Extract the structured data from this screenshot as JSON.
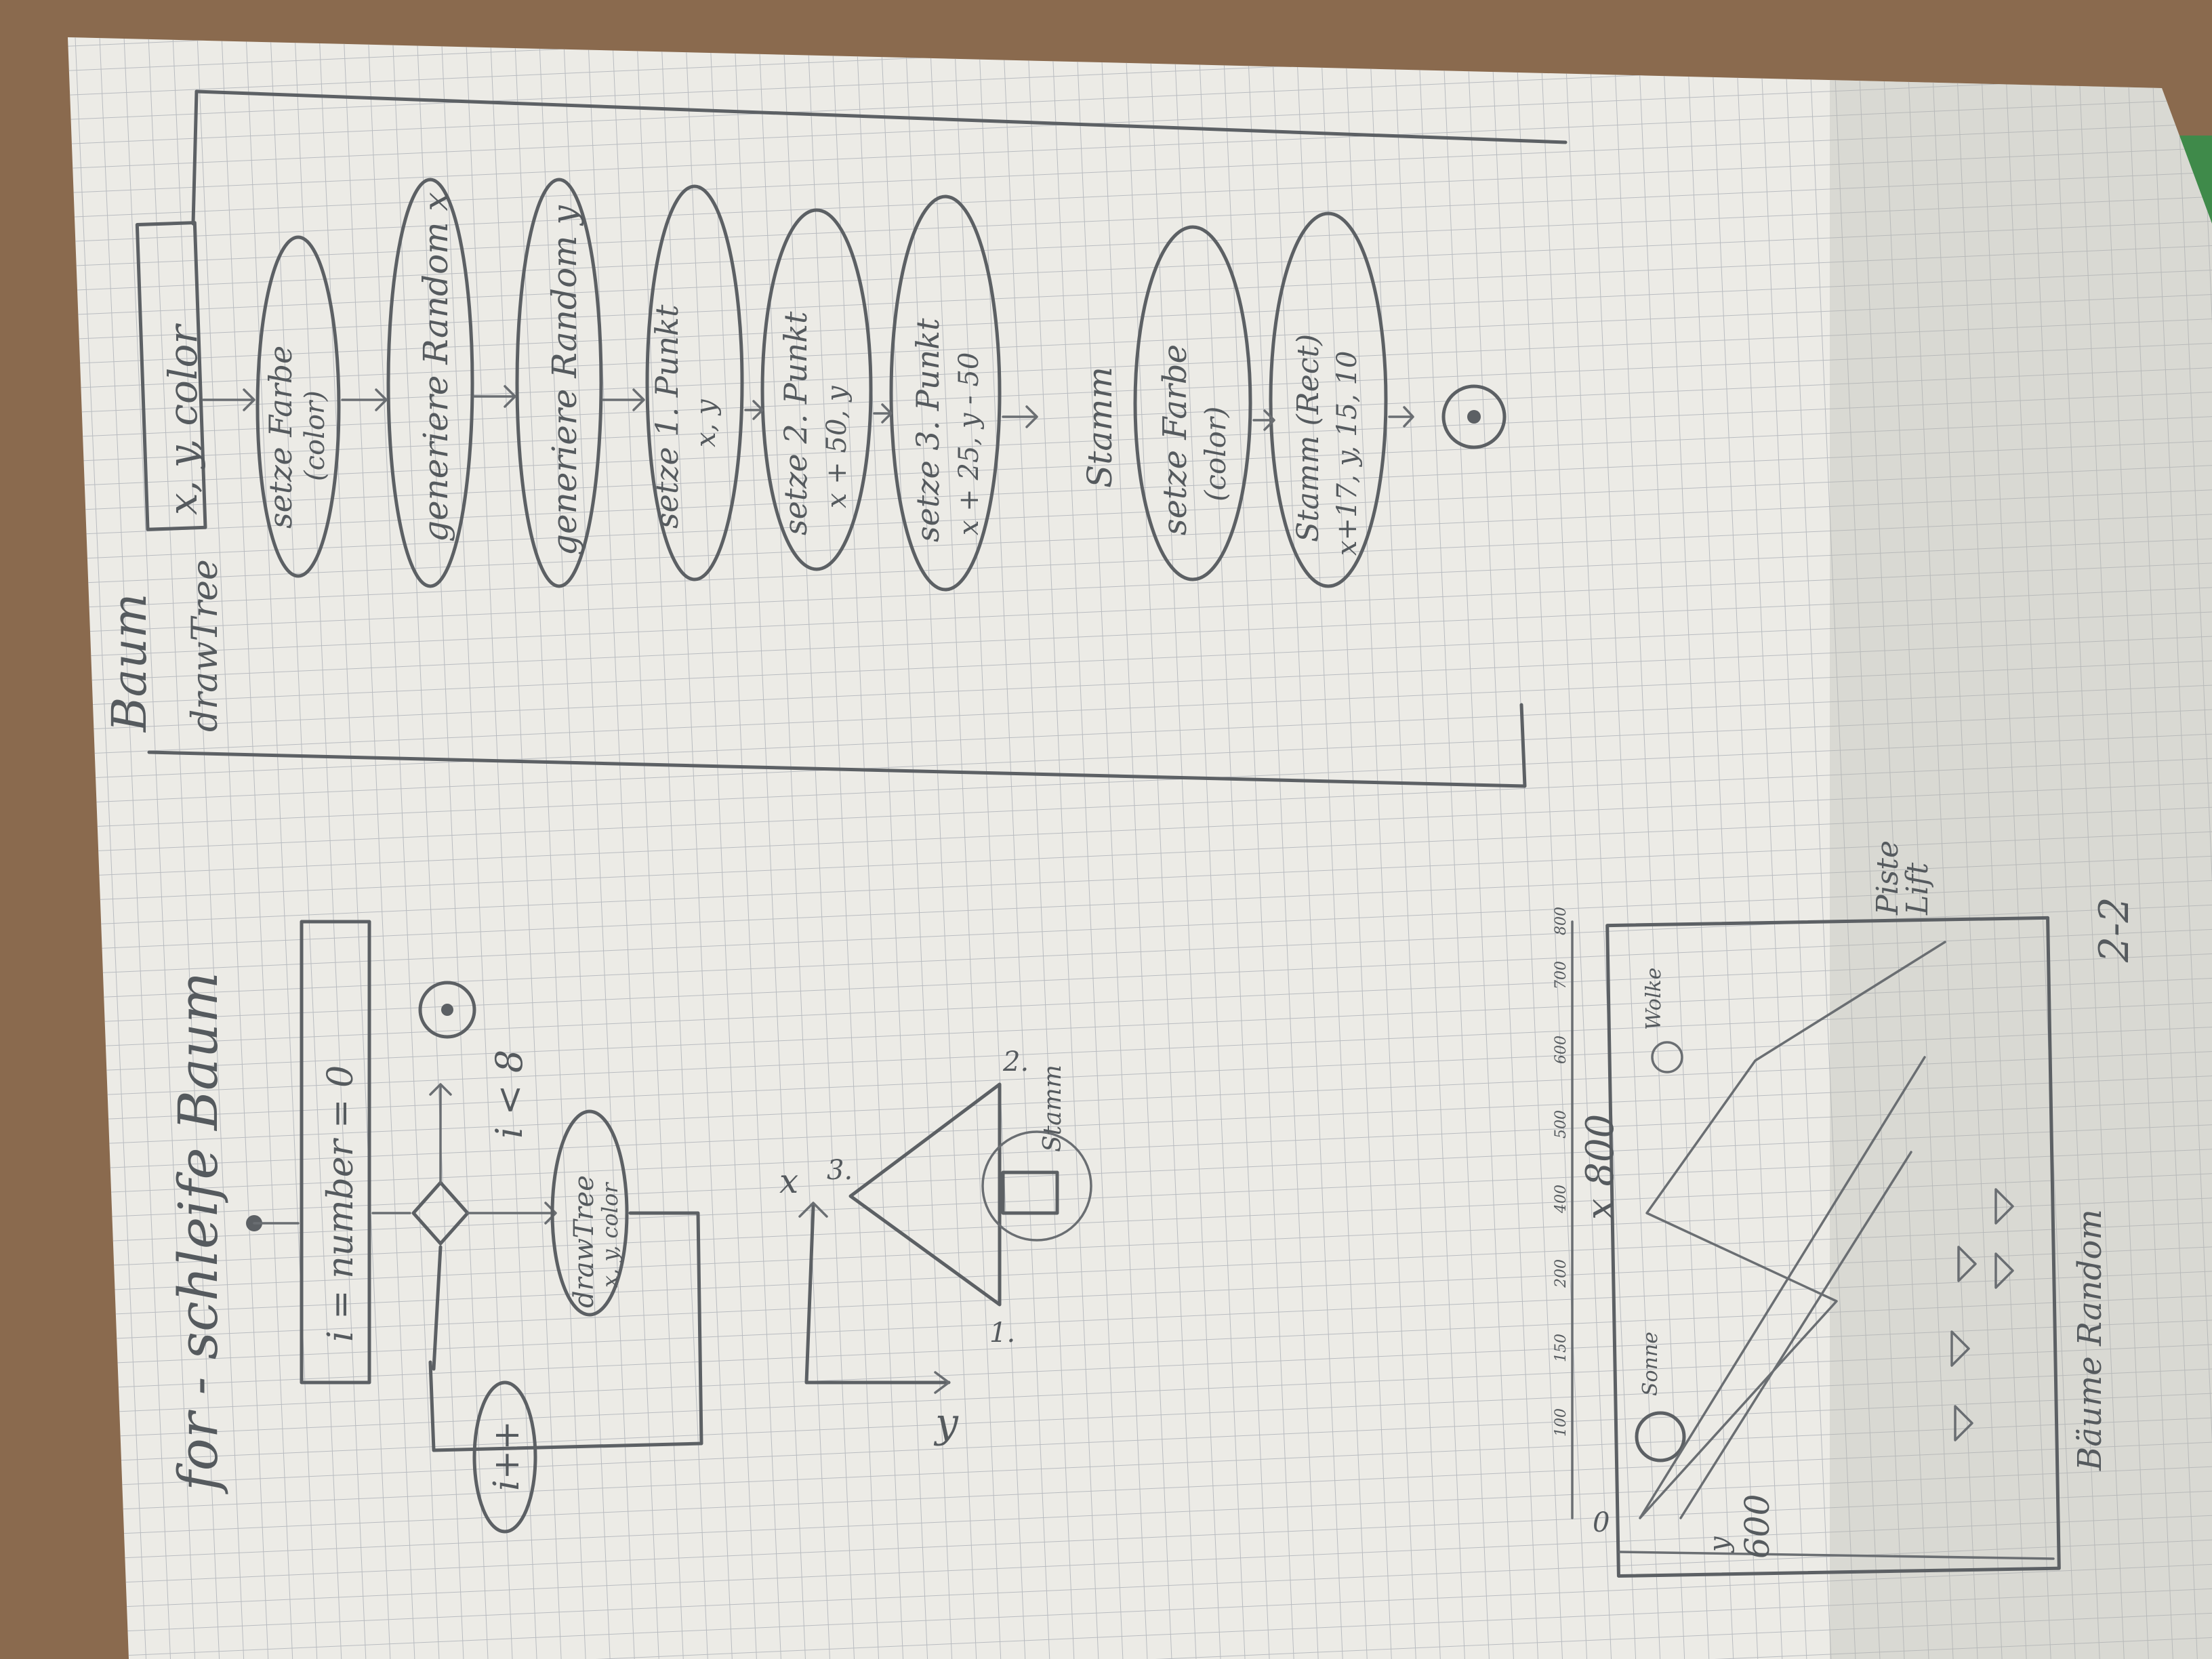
{
  "colors": {
    "table": "#8a6a4e",
    "paper": "#ecebe6",
    "grid": "#b9bcc0",
    "pencil": "#5c6064"
  },
  "top_flowchart": {
    "title": "Baum",
    "function_name": "drawTree",
    "params": "x, y, color",
    "steps": [
      {
        "line1": "setze Farbe",
        "line2": "(color)"
      },
      {
        "line1": "generiere Random x",
        "line2": ""
      },
      {
        "line1": "generiere Random y",
        "line2": ""
      },
      {
        "line1": "setze 1. Punkt",
        "line2": "x, y"
      },
      {
        "line1": "setze 2. Punkt",
        "line2": "x + 50, y"
      },
      {
        "line1": "setze 3. Punkt",
        "line2": "x + 25, y - 50"
      },
      {
        "line1": "Stamm",
        "line2": ""
      },
      {
        "line1": "setze Farbe",
        "line2": "(color)"
      },
      {
        "line1": "Stamm (Rect)",
        "line2": "x+17, y, 15, 10"
      }
    ]
  },
  "loop_flowchart": {
    "title": "for - schleife Baum",
    "init": "i = number = 0",
    "condition": "i < 8",
    "call_line1": "drawTree",
    "call_line2": "x, y, color",
    "increment": "i++"
  },
  "tree_sketch": {
    "x_axis": "x",
    "y_axis": "y",
    "p1": "1.",
    "p2": "2.",
    "p3": "3.",
    "trunk": "Stamm"
  },
  "scene_sketch": {
    "width_label": "x  800",
    "height_label": "600",
    "origin": "0",
    "y_small": "y",
    "sun": "Sonne",
    "cloud": "Wolke",
    "piste": "Piste",
    "lift": "Lift",
    "trees": "Bäume Random",
    "x_ticks": [
      "100",
      "150",
      "200",
      "400",
      "500",
      "600",
      "700",
      "800"
    ],
    "page_number": "2-2"
  }
}
